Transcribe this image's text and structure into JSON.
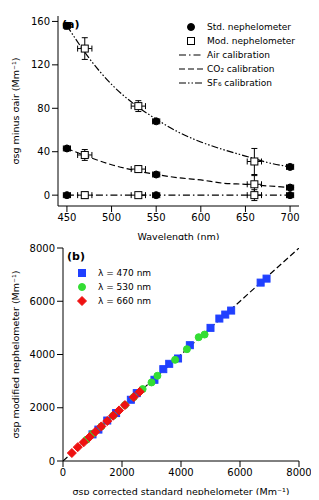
{
  "chart_data": [
    {
      "type": "scatter",
      "title": "(a)",
      "x_label": "Wavelength (nm)",
      "y_label": "σsg minus σair (Mm⁻¹)",
      "xlim": [
        440,
        710
      ],
      "xticks": [
        450,
        500,
        550,
        600,
        650,
        700
      ],
      "ylim": [
        -10,
        165
      ],
      "yticks": [
        0,
        40,
        80,
        120,
        160
      ],
      "legend": "upper right",
      "series": [
        {
          "name": "Std. nephelometer",
          "type": "scatter",
          "marker": "circle",
          "color": "#000000",
          "x": [
            450,
            450,
            450,
            550,
            550,
            550,
            700,
            700,
            700
          ],
          "values": [
            0,
            43,
            156,
            0,
            19,
            68,
            0,
            7,
            26
          ],
          "x_error": [
            4,
            4,
            4,
            4,
            4,
            4,
            4,
            4,
            4
          ],
          "y_error": [
            1,
            1,
            3,
            1,
            1,
            1,
            1,
            1,
            1
          ]
        },
        {
          "name": "Mod. nephelometer",
          "type": "scatter",
          "marker": "open_square",
          "color": "#000000",
          "x": [
            470,
            470,
            470,
            530,
            530,
            530,
            660,
            660,
            660
          ],
          "values": [
            0,
            37,
            135,
            0,
            24,
            82,
            0,
            10,
            31
          ],
          "x_error": [
            8,
            8,
            8,
            8,
            8,
            8,
            8,
            8,
            8
          ],
          "y_error": [
            3,
            5,
            10,
            2,
            3,
            5,
            5,
            8,
            12
          ]
        },
        {
          "name": "Air calibration",
          "type": "line",
          "line_style": "dashdot",
          "color": "#000000",
          "x": [
            450,
            475,
            500,
            525,
            550,
            575,
            600,
            625,
            650,
            675,
            700
          ],
          "values": [
            0,
            0,
            0,
            0,
            0,
            0,
            0,
            0,
            0,
            0,
            0
          ]
        },
        {
          "name": "CO₂ calibration",
          "type": "line",
          "line_style": "dashed",
          "color": "#000000",
          "x": [
            450,
            475,
            500,
            525,
            550,
            575,
            600,
            625,
            650,
            675,
            700
          ],
          "values": [
            43,
            35,
            28,
            23,
            19,
            16,
            14,
            11,
            10,
            8.5,
            7
          ]
        },
        {
          "name": "SF₆ calibration",
          "type": "line",
          "line_style": "dashdotdot",
          "color": "#000000",
          "x": [
            450,
            475,
            500,
            525,
            550,
            575,
            600,
            625,
            650,
            675,
            700
          ],
          "values": [
            156,
            126,
            102,
            84,
            70,
            58,
            49,
            42,
            36,
            30,
            26
          ]
        }
      ]
    },
    {
      "type": "scatter",
      "title": "(b)",
      "x_label": "σsp corrected standard nephelometer (Mm⁻¹)",
      "y_label": "σsp modified nephelometer (Mm⁻¹)",
      "xlim": [
        0,
        8000
      ],
      "xticks": [
        0,
        2000,
        4000,
        6000,
        8000
      ],
      "ylim": [
        0,
        8000
      ],
      "yticks": [
        0,
        2000,
        4000,
        6000,
        8000
      ],
      "legend": "upper left",
      "series": [
        {
          "name": "λ = 470 nm",
          "type": "scatter",
          "marker": "square",
          "color": "#2040ff",
          "x": [
            1000,
            1200,
            1500,
            1800,
            2300,
            2500,
            3100,
            3400,
            3600,
            3900,
            4300,
            5000,
            5300,
            5500,
            5700,
            6700,
            6900
          ],
          "values": [
            1000,
            1180,
            1520,
            1800,
            2300,
            2550,
            3050,
            3450,
            3650,
            3850,
            4350,
            5000,
            5350,
            5500,
            5650,
            6700,
            6850
          ]
        },
        {
          "name": "λ = 530 nm",
          "type": "scatter",
          "marker": "circle",
          "color": "#33dd33",
          "x": [
            800,
            1000,
            1300,
            1700,
            2100,
            2400,
            2700,
            3000,
            3200,
            3800,
            4200,
            4600,
            4800
          ],
          "values": [
            800,
            1020,
            1300,
            1700,
            2100,
            2400,
            2700,
            2950,
            3200,
            3800,
            4200,
            4650,
            4750
          ]
        },
        {
          "name": "λ = 660 nm",
          "type": "scatter",
          "marker": "diamond",
          "color": "#ee1111",
          "x": [
            300,
            500,
            700,
            900,
            1100,
            1300,
            1500,
            1700,
            1900,
            2100,
            2400,
            2600
          ],
          "values": [
            300,
            520,
            700,
            900,
            1100,
            1300,
            1500,
            1700,
            1900,
            2100,
            2400,
            2600
          ]
        },
        {
          "type": "line",
          "line_style": "dashed",
          "color": "#000000",
          "x": [
            0,
            8000
          ],
          "values": [
            0,
            8000
          ]
        }
      ]
    }
  ]
}
